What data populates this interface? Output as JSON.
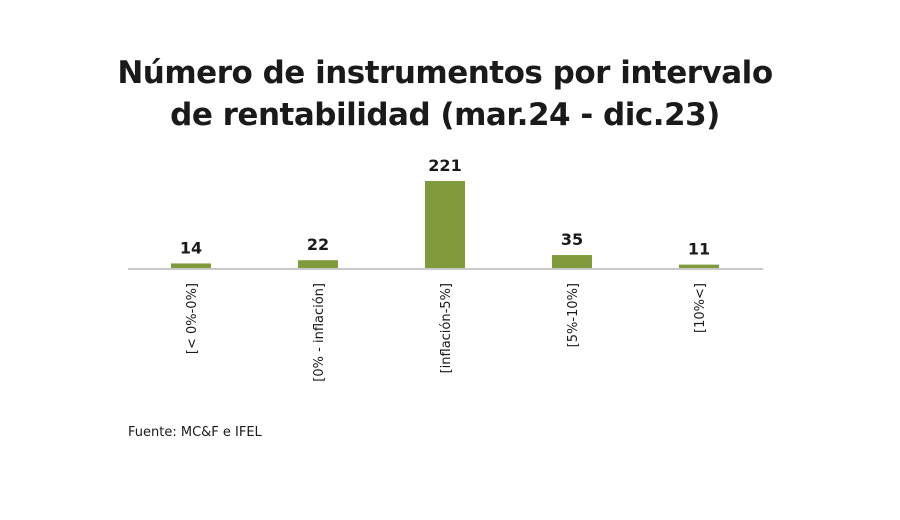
{
  "chart_data": {
    "type": "bar",
    "title_lines": [
      "Número de instrumentos por intervalo",
      "de rentabilidad (mar.24 - dic.23)"
    ],
    "categories": [
      "[< 0%-0%]",
      "[0% - inflación]",
      "[inflación-5%]",
      "[5%-10%]",
      "[10%<]"
    ],
    "values": [
      14,
      22,
      221,
      35,
      11
    ],
    "value_labels": [
      "14",
      "22",
      "221",
      "35",
      "11"
    ],
    "ylim": [
      0,
      221
    ],
    "grid": false,
    "bar_color": "#7e9a3a",
    "axis_color": "#c8c8c8"
  },
  "source": "Fuente: MC&F e IFEL"
}
